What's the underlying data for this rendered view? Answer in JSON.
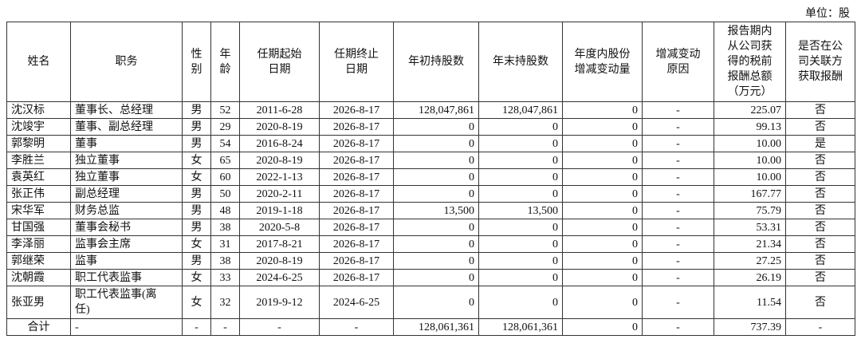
{
  "unit": "单位：股",
  "table": {
    "header": [
      "姓名",
      "职务",
      "性\n别",
      "年\n龄",
      "任期起始\n日期",
      "任期终止\n日期",
      "年初持股数",
      "年末持股数",
      "年度内股份\n增减变动量",
      "增减变动\n原因",
      "报告期内\n从公司获\n得的税前\n报酬总额\n（万元）",
      "是否在公\n司关联方\n获取报酬"
    ],
    "rows": [
      [
        "沈汉标",
        "董事长、总经理",
        "男",
        "52",
        "2011-6-28",
        "2026-8-17",
        "128,047,861",
        "128,047,861",
        "0",
        "-",
        "225.07",
        "否"
      ],
      [
        "沈竣宇",
        "董事、副总经理",
        "男",
        "29",
        "2020-8-19",
        "2026-8-17",
        "0",
        "0",
        "0",
        "-",
        "99.13",
        "否"
      ],
      [
        "郭黎明",
        "董事",
        "男",
        "54",
        "2016-8-24",
        "2026-8-17",
        "0",
        "0",
        "0",
        "-",
        "10.00",
        "是"
      ],
      [
        "李胜兰",
        "独立董事",
        "女",
        "65",
        "2020-8-19",
        "2026-8-17",
        "0",
        "0",
        "0",
        "-",
        "10.00",
        "否"
      ],
      [
        "袁英红",
        "独立董事",
        "女",
        "60",
        "2022-1-13",
        "2026-8-17",
        "0",
        "0",
        "0",
        "-",
        "10.00",
        "否"
      ],
      [
        "张正伟",
        "副总经理",
        "男",
        "50",
        "2020-2-11",
        "2026-8-17",
        "0",
        "0",
        "0",
        "-",
        "167.77",
        "否"
      ],
      [
        "宋华军",
        "财务总监",
        "男",
        "48",
        "2019-1-18",
        "2026-8-17",
        "13,500",
        "13,500",
        "0",
        "-",
        "75.79",
        "否"
      ],
      [
        "甘国强",
        "董事会秘书",
        "男",
        "38",
        "2020-5-8",
        "2026-8-17",
        "0",
        "0",
        "0",
        "-",
        "53.31",
        "否"
      ],
      [
        "李泽丽",
        "监事会主席",
        "女",
        "31",
        "2017-8-21",
        "2026-8-17",
        "0",
        "0",
        "0",
        "-",
        "21.34",
        "否"
      ],
      [
        "郭继荣",
        "监事",
        "男",
        "38",
        "2020-8-19",
        "2026-8-17",
        "0",
        "0",
        "0",
        "-",
        "27.25",
        "否"
      ],
      [
        "沈朝霞",
        "职工代表监事",
        "女",
        "33",
        "2024-6-25",
        "2026-8-17",
        "0",
        "0",
        "0",
        "-",
        "26.19",
        "否"
      ],
      [
        "张亚男",
        "职工代表监事(离\n任)",
        "女",
        "32",
        "2019-9-12",
        "2024-6-25",
        "0",
        "0",
        "0",
        "-",
        "11.54",
        "否"
      ],
      [
        "合计",
        "-",
        "-",
        "-",
        "-",
        "-",
        "128,061,361",
        "128,061,361",
        "0",
        "-",
        "737.39",
        "-"
      ]
    ]
  }
}
